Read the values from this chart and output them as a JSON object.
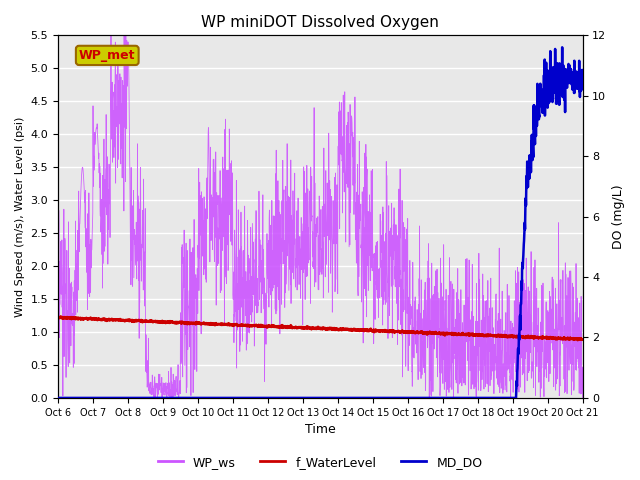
{
  "title": "WP miniDOT Dissolved Oxygen",
  "xlabel": "Time",
  "ylabel_left": "Wind Speed (m/s), Water Level (psi)",
  "ylabel_right": "DO (mg/L)",
  "ylim_left": [
    0,
    5.5
  ],
  "ylim_right": [
    0,
    12
  ],
  "fig_facecolor": "#ffffff",
  "plot_bg_color": "#e8e8e8",
  "annotation_text": "WP_met",
  "annotation_box_facecolor": "#cccc00",
  "annotation_box_edgecolor": "#996600",
  "annotation_text_color": "#cc0000",
  "wp_ws_color": "#cc55ff",
  "f_water_color": "#cc0000",
  "md_do_color": "#0000cc",
  "x_tick_labels": [
    "Oct 6",
    "Oct 7",
    "Oct 8",
    "Oct 9",
    "Oct 10",
    "Oct 11",
    "Oct 12",
    "Oct 13",
    "Oct 14",
    "Oct 15",
    "Oct 16",
    "Oct 17",
    "Oct 18",
    "Oct 19",
    "Oct 20",
    "Oct 21"
  ],
  "n_days": 15,
  "n_points_per_day": 144
}
